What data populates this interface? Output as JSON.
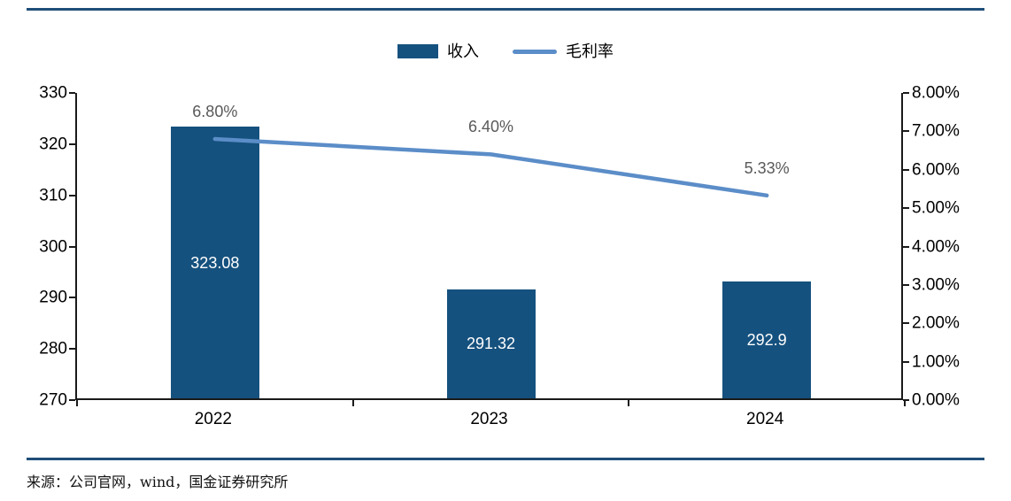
{
  "chart_data": {
    "type": "combo",
    "categories": [
      "2022",
      "2023",
      "2024"
    ],
    "series": [
      {
        "name": "收入",
        "chart": "bar",
        "axis": "left",
        "values": [
          323.08,
          291.32,
          292.9
        ],
        "labels": [
          "323.08",
          "291.32",
          "292.9"
        ],
        "color": "#15517E"
      },
      {
        "name": "毛利率",
        "chart": "line",
        "axis": "right",
        "values": [
          6.8,
          6.4,
          5.33
        ],
        "labels": [
          "6.80%",
          "6.40%",
          "5.33%"
        ],
        "color": "#5B8DC8"
      }
    ],
    "left_axis": {
      "min": 270,
      "max": 330,
      "step": 10,
      "ticks": [
        "330",
        "320",
        "310",
        "300",
        "290",
        "280",
        "270"
      ]
    },
    "right_axis": {
      "min": 0,
      "max": 8,
      "step": 1,
      "ticks": [
        "8.00%",
        "7.00%",
        "6.00%",
        "5.00%",
        "4.00%",
        "3.00%",
        "2.00%",
        "1.00%",
        "0.00%"
      ]
    },
    "grid": "off",
    "legend_position": "top-center",
    "title": ""
  },
  "source": "来源：公司官网，wind，国金证券研究所",
  "colors": {
    "bar": "#15517E",
    "line": "#5B8DC8",
    "rule": "#1F4E79",
    "axis_line": "#1a1a1a",
    "data_label_gray": "#595959",
    "bar_label_white": "#ffffff"
  }
}
